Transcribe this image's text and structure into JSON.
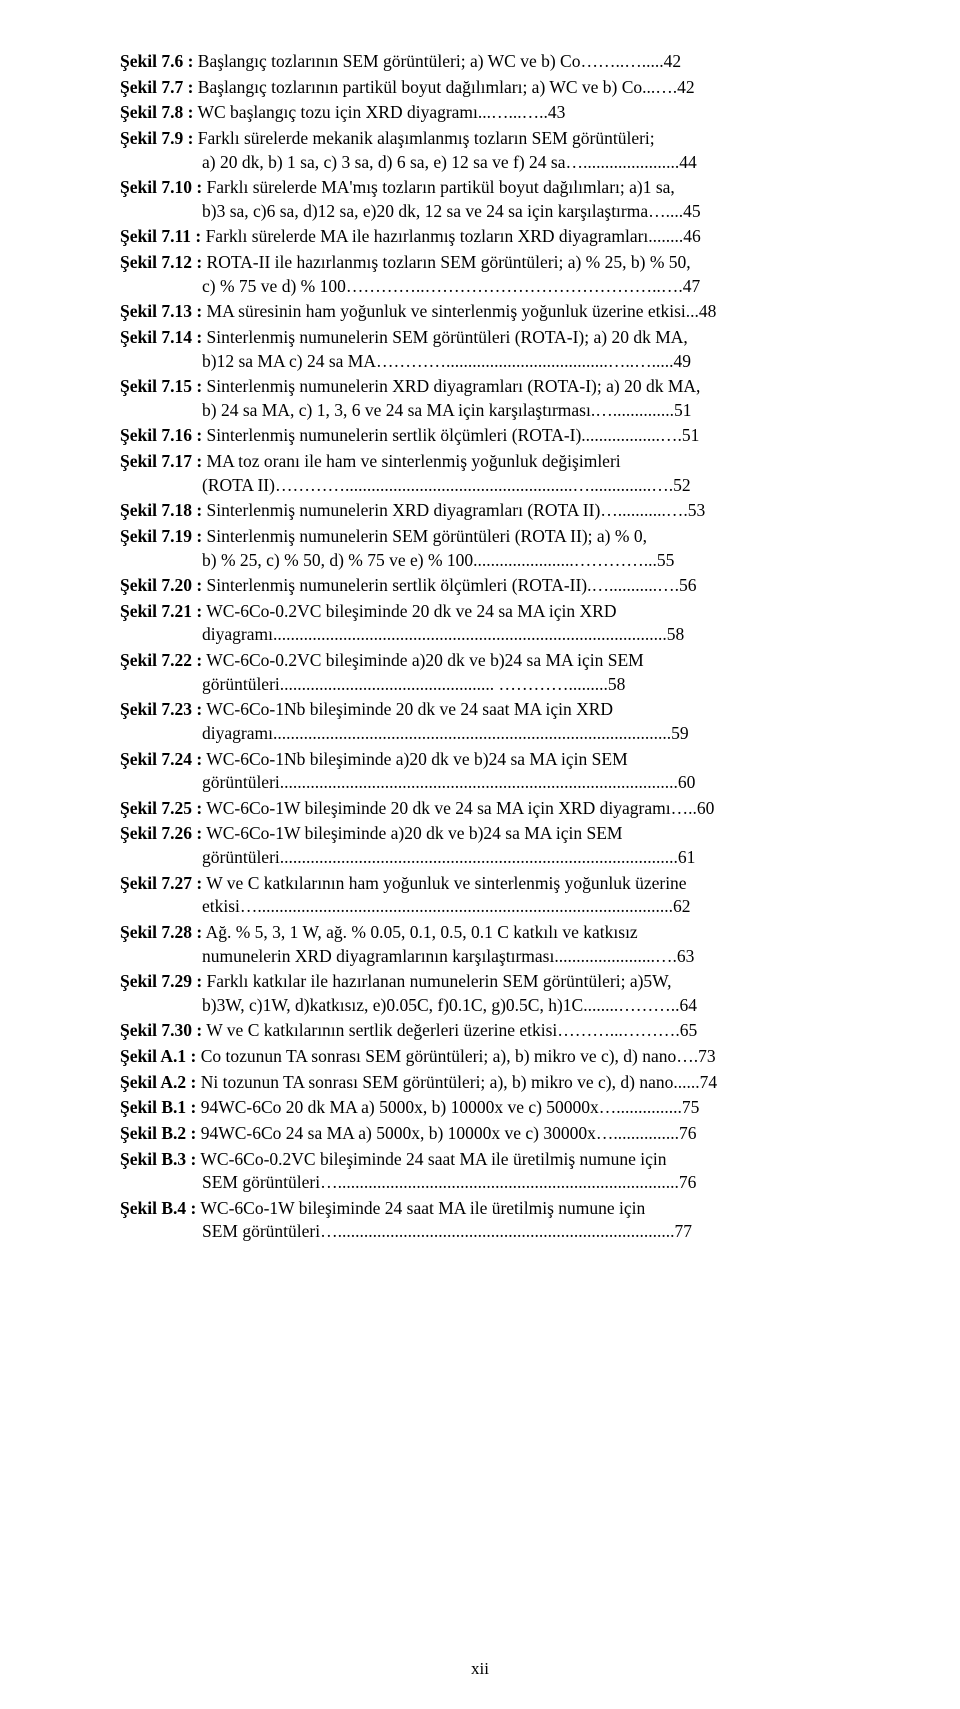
{
  "page_number": "xii",
  "entries": [
    {
      "label": "Şekil 7.6 :",
      "text": " Başlangıç tozlarının SEM görüntüleri; a) WC ve b) Co……..….....42"
    },
    {
      "label": "Şekil 7.7 :",
      "text": " Başlangıç tozlarının partikül boyut dağılımları; a) WC ve b) Co...….42"
    },
    {
      "label": "Şekil 7.8 :",
      "text": " WC başlangıç tozu için XRD diyagramı...…...…..43"
    },
    {
      "label": "Şekil 7.9 :",
      "text": " Farklı sürelerde mekanik alaşımlanmış tozların SEM görüntüleri;",
      "indent": "a) 20 dk, b) 1 sa, c) 3 sa, d) 6 sa, e) 12 sa ve f) 24 sa…......................44"
    },
    {
      "label": "Şekil 7.10 :",
      "text": " Farklı sürelerde MA'mış tozların partikül boyut dağılımları; a)1 sa,",
      "indent": "b)3 sa, c)6 sa, d)12 sa, e)20 dk, 12 sa ve 24 sa için karşılaştırma…....45"
    },
    {
      "label": "Şekil 7.11 :",
      "text": " Farklı sürelerde MA ile hazırlanmış tozların XRD diyagramları........46"
    },
    {
      "label": "Şekil 7.12 :",
      "text": " ROTA-II ile hazırlanmış tozların SEM görüntüleri; a) % 25, b) % 50,",
      "indent": "c) % 75 ve d) % 100…………..…………………………………..….47"
    },
    {
      "label": "Şekil 7.13 :",
      "text": " MA süresinin ham yoğunluk ve sinterlenmiş yoğunluk üzerine etkisi...48"
    },
    {
      "label": "Şekil 7.14 :",
      "text": " Sinterlenmiş numunelerin SEM görüntüleri (ROTA-I); a) 20 dk MA,",
      "indent": "b)12 sa MA c) 24 sa MA………….....................................…..….....49"
    },
    {
      "label": "Şekil 7.15 :",
      "text": " Sinterlenmiş numunelerin XRD diyagramları (ROTA-I); a) 20 dk MA,",
      "indent": "b) 24 sa MA, c) 1, 3, 6 ve 24 sa MA için karşılaştırması.…..............51"
    },
    {
      "label": "Şekil 7.16 :",
      "text": " Sinterlenmiş numunelerin sertlik ölçümleri (ROTA-I)..................….51"
    },
    {
      "label": "Şekil 7.17 :",
      "text": " MA toz oranı ile ham ve sinterlenmiş yoğunluk değişimleri",
      "indent": "(ROTA II)…………....................................................…..............….52"
    },
    {
      "label": "Şekil 7.18 :",
      "text": " Sinterlenmiş numunelerin XRD diyagramları (ROTA II)…...........….53"
    },
    {
      "label": "Şekil 7.19 :",
      "text": " Sinterlenmiş numunelerin SEM görüntüleri (ROTA II); a) % 0,",
      "indent": "b) % 25,  c) % 50, d) % 75 ve e) % 100.......................…………...55"
    },
    {
      "label": "Şekil 7.20 :",
      "text": " Sinterlenmiş numunelerin sertlik ölçümleri (ROTA-II).…...........….56"
    },
    {
      "label": "Şekil 7.21 :",
      "text": " WC-6Co-0.2VC bileşiminde 20 dk ve 24 sa MA için XRD",
      "indent": "diyagramı..........................................................................................58"
    },
    {
      "label": "Şekil 7.22 :",
      "text": " WC-6Co-0.2VC bileşiminde a)20 dk ve b)24 sa MA için SEM",
      "indent": "görüntüleri................................................. ………….........58"
    },
    {
      "label": "Şekil 7.23 :",
      "text": " WC-6Co-1Nb bileşiminde 20 dk ve 24 saat MA için XRD",
      "indent": "diyagramı...........................................................................................59"
    },
    {
      "label": "Şekil 7.24 :",
      "text": " WC-6Co-1Nb bileşiminde a)20 dk ve b)24 sa MA için SEM",
      "indent": "görüntüleri...........................................................................................60"
    },
    {
      "label": "Şekil 7.25 :",
      "text": " WC-6Co-1W bileşiminde 20 dk ve 24 sa MA için XRD diyagramı…..60"
    },
    {
      "label": "Şekil 7.26 :",
      "text": " WC-6Co-1W bileşiminde a)20 dk ve b)24 sa MA için SEM",
      "indent": "görüntüleri...........................................................................................61"
    },
    {
      "label": "Şekil 7.27 :",
      "text": " W ve C katkılarının ham yoğunluk ve sinterlenmiş yoğunluk üzerine",
      "indent": "etkisi…...............................................................................................62"
    },
    {
      "label": "Şekil 7.28 :",
      "text": " Ağ. % 5, 3, 1 W, ağ. % 0.05, 0.1, 0.5, 0.1 C katkılı ve katkısız",
      "indent": "numunelerin XRD diyagramlarının karşılaştırması.......................….63"
    },
    {
      "label": "Şekil 7.29 :",
      "text": " Farklı katkılar ile hazırlanan numunelerin SEM görüntüleri; a)5W,",
      "indent": "b)3W, c)1W, d)katkısız, e)0.05C, f)0.1C, g)0.5C, h)1C........………..64"
    },
    {
      "label": "Şekil 7.30 :",
      "text": " W ve C katkılarının sertlik değerleri üzerine etkisi………...……….65"
    },
    {
      "label": "Şekil A.1 :",
      "text": " Co tozunun TA sonrası SEM görüntüleri; a), b) mikro ve c), d) nano….73"
    },
    {
      "label": "Şekil A.2 :",
      "text": " Ni tozunun TA sonrası SEM görüntüleri; a), b) mikro ve c), d) nano......74"
    },
    {
      "label": "Şekil B.1 :",
      "text": " 94WC-6Co 20 dk MA a) 5000x, b) 10000x ve c) 50000x…...............75"
    },
    {
      "label": "Şekil B.2 :",
      "text": " 94WC-6Co 24 sa MA a) 5000x, b) 10000x ve c) 30000x…...............76"
    },
    {
      "label": "Şekil B.3 :",
      "text": " WC-6Co-0.2VC bileşiminde 24 saat MA ile üretilmiş numune için",
      "indent": "SEM görüntüleri…..............................................................................76"
    },
    {
      "label": "Şekil B.4 :",
      "text": " WC-6Co-1W bileşiminde 24 saat MA ile üretilmiş numune için",
      "indent": "SEM görüntüleri….............................................................................77"
    }
  ]
}
